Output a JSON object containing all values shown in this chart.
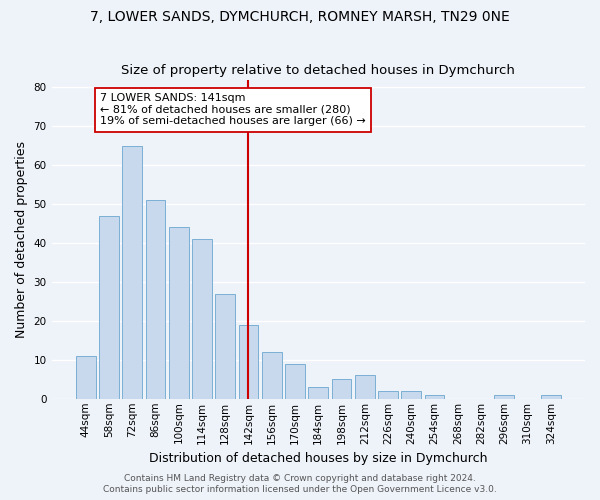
{
  "title": "7, LOWER SANDS, DYMCHURCH, ROMNEY MARSH, TN29 0NE",
  "subtitle": "Size of property relative to detached houses in Dymchurch",
  "xlabel": "Distribution of detached houses by size in Dymchurch",
  "ylabel": "Number of detached properties",
  "bar_color": "#c8d9ed",
  "bar_edge_color": "#7aafd4",
  "bin_labels": [
    "44sqm",
    "58sqm",
    "72sqm",
    "86sqm",
    "100sqm",
    "114sqm",
    "128sqm",
    "142sqm",
    "156sqm",
    "170sqm",
    "184sqm",
    "198sqm",
    "212sqm",
    "226sqm",
    "240sqm",
    "254sqm",
    "268sqm",
    "282sqm",
    "296sqm",
    "310sqm",
    "324sqm"
  ],
  "bar_heights": [
    11,
    47,
    65,
    51,
    44,
    41,
    27,
    19,
    12,
    9,
    3,
    5,
    6,
    2,
    2,
    1,
    0,
    0,
    1,
    0,
    1
  ],
  "vline_x": 7,
  "vline_color": "#cc0000",
  "annotation_text": "7 LOWER SANDS: 141sqm\n← 81% of detached houses are smaller (280)\n19% of semi-detached houses are larger (66) →",
  "annotation_box_color": "#ffffff",
  "annotation_box_edge": "#cc0000",
  "ylim": [
    0,
    82
  ],
  "yticks": [
    0,
    10,
    20,
    30,
    40,
    50,
    60,
    70,
    80
  ],
  "footer1": "Contains HM Land Registry data © Crown copyright and database right 2024.",
  "footer2": "Contains public sector information licensed under the Open Government Licence v3.0.",
  "background_color": "#eef2f9",
  "grid_color": "#ffffff",
  "title_fontsize": 10,
  "subtitle_fontsize": 9.5,
  "axis_label_fontsize": 9,
  "tick_fontsize": 7.5,
  "annotation_fontsize": 8,
  "footer_fontsize": 6.5
}
